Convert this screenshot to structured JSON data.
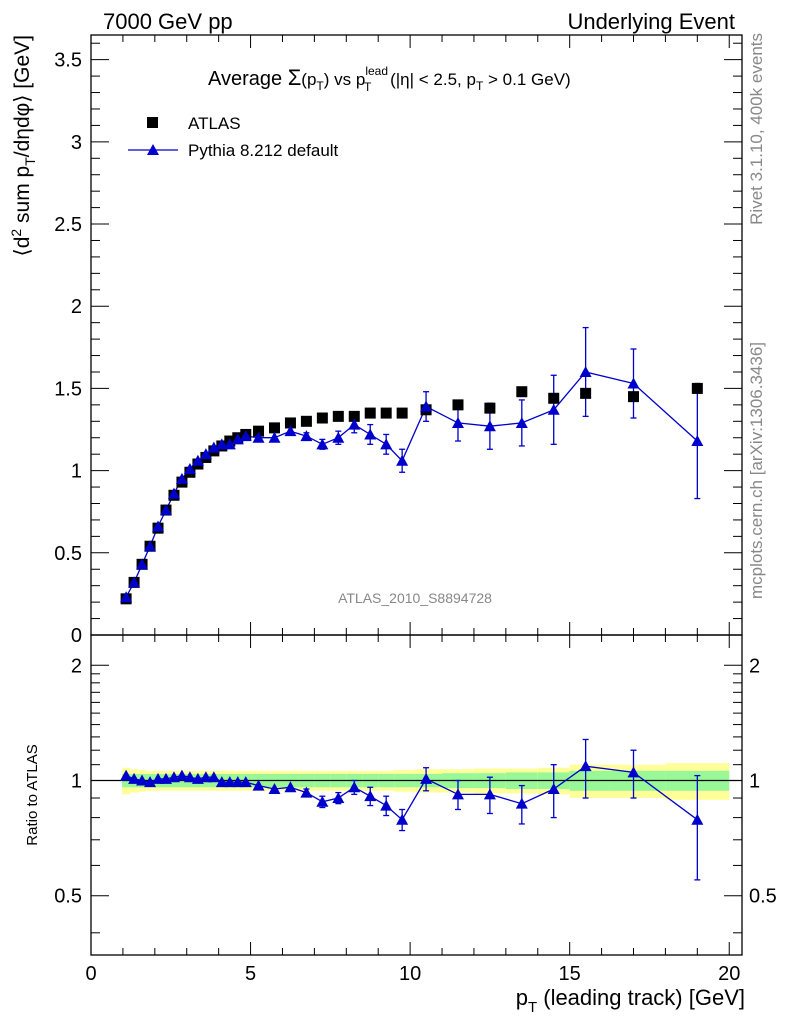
{
  "header": {
    "left": "7000 GeV pp",
    "right": "Underlying Event"
  },
  "side_text": {
    "rivet": "Rivet 3.1.10,  400k events",
    "mcplots": "mcplots.cern.ch [arXiv:1306.3436]"
  },
  "watermark": "ATLAS_2010_S8894728",
  "main_panel": {
    "title": {
      "prefix": "Average ",
      "sigma": "Σ",
      "sigma_arg_open": "(p",
      "sigma_arg_sub": "T",
      "sigma_arg_close": ")",
      "vs": " vs p",
      "lead_sup": "lead",
      "lead_sub": "T",
      "cuts_1": " (|η| < 2.5, p",
      "cuts_sub": "T",
      "cuts_2": " > 0.1 GeV)"
    },
    "ylabel": {
      "open": "⟨d",
      "sup": "2",
      "mid": " sum p",
      "sub": "T",
      "close": "/dηdφ⟩ [GeV]"
    },
    "yticks": [
      "0",
      "0.5",
      "1",
      "1.5",
      "2",
      "2.5",
      "3",
      "3.5"
    ],
    "legend": {
      "atlas": "ATLAS",
      "pythia": "Pythia 8.212 default"
    }
  },
  "ratio_panel": {
    "ylabel": "Ratio to ATLAS",
    "yticks": [
      "0.5",
      "1",
      "2"
    ]
  },
  "xaxis": {
    "label_pre": "p",
    "label_sub": "T",
    "label_post": " (leading track) [GeV]",
    "ticks": [
      "0",
      "5",
      "10",
      "15",
      "20"
    ]
  },
  "colors": {
    "mc": "#0000cc",
    "data": "#000000",
    "band_inner": "#98f898",
    "band_outer": "#ffff99"
  },
  "chart_data": [
    {
      "type": "scatter",
      "title": "Average Σ(pT) vs pT lead (|η| < 2.5, pT > 0.1 GeV)",
      "ylabel": "⟨d2 sum pT/dηdφ⟩ [GeV]",
      "xlabel": "pT (leading track) [GeV]",
      "xlim": [
        0,
        20.4
      ],
      "ylim": [
        0,
        3.65
      ],
      "grid": false,
      "legend_position": "top-left",
      "x": [
        1.1,
        1.35,
        1.6,
        1.85,
        2.1,
        2.35,
        2.6,
        2.85,
        3.1,
        3.35,
        3.6,
        3.85,
        4.1,
        4.35,
        4.6,
        4.85,
        5.25,
        5.75,
        6.25,
        6.75,
        7.25,
        7.75,
        8.25,
        8.75,
        9.25,
        9.75,
        10.5,
        11.5,
        12.5,
        13.5,
        14.5,
        15.5,
        17.0,
        19.0
      ],
      "series": [
        {
          "name": "ATLAS",
          "marker": "square",
          "values": [
            0.22,
            0.32,
            0.43,
            0.54,
            0.65,
            0.76,
            0.85,
            0.93,
            0.99,
            1.04,
            1.08,
            1.12,
            1.15,
            1.18,
            1.2,
            1.22,
            1.24,
            1.26,
            1.29,
            1.3,
            1.32,
            1.33,
            1.33,
            1.35,
            1.35,
            1.35,
            1.37,
            1.4,
            1.38,
            1.48,
            1.44,
            1.47,
            1.45,
            1.5
          ]
        },
        {
          "name": "Pythia 8.212 default",
          "marker": "triangle",
          "values": [
            0.23,
            0.32,
            0.43,
            0.54,
            0.66,
            0.76,
            0.86,
            0.95,
            1.01,
            1.06,
            1.1,
            1.14,
            1.16,
            1.16,
            1.19,
            1.21,
            1.2,
            1.2,
            1.24,
            1.21,
            1.16,
            1.2,
            1.28,
            1.22,
            1.16,
            1.06,
            1.39,
            1.29,
            1.27,
            1.29,
            1.37,
            1.6,
            1.53,
            1.18
          ],
          "errors": [
            0.0,
            0.0,
            0.0,
            0.0,
            0.0,
            0.0,
            0.0,
            0.0,
            0.0,
            0.0,
            0.0,
            0.0,
            0.0,
            0.0,
            0.0,
            0.0,
            0.0,
            0.0,
            0.0,
            0.02,
            0.03,
            0.04,
            0.05,
            0.06,
            0.06,
            0.07,
            0.09,
            0.11,
            0.14,
            0.14,
            0.21,
            0.27,
            0.21,
            0.35
          ]
        }
      ]
    },
    {
      "type": "line",
      "ylabel": "Ratio to ATLAS",
      "xlim": [
        0,
        20.4
      ],
      "ylim": [
        0.35,
        2.4
      ],
      "log_y": true,
      "reference_line": 1,
      "x": [
        1.1,
        1.35,
        1.6,
        1.85,
        2.1,
        2.35,
        2.6,
        2.85,
        3.1,
        3.35,
        3.6,
        3.85,
        4.1,
        4.35,
        4.6,
        4.85,
        5.25,
        5.75,
        6.25,
        6.75,
        7.25,
        7.75,
        8.25,
        8.75,
        9.25,
        9.75,
        10.5,
        11.5,
        12.5,
        13.5,
        14.5,
        15.5,
        17.0,
        19.0
      ],
      "series": [
        {
          "name": "Pythia 8.212 default",
          "values": [
            1.03,
            1.01,
            1.0,
            0.99,
            1.01,
            1.01,
            1.02,
            1.03,
            1.02,
            1.01,
            1.02,
            1.02,
            0.99,
            0.99,
            0.99,
            0.99,
            0.97,
            0.95,
            0.96,
            0.93,
            0.88,
            0.9,
            0.96,
            0.91,
            0.86,
            0.79,
            1.01,
            0.92,
            0.92,
            0.87,
            0.95,
            1.09,
            1.05,
            0.79
          ],
          "errors": [
            0.0,
            0.0,
            0.0,
            0.0,
            0.0,
            0.0,
            0.0,
            0.0,
            0.0,
            0.0,
            0.0,
            0.0,
            0.0,
            0.0,
            0.0,
            0.0,
            0.0,
            0.0,
            0.0,
            0.02,
            0.03,
            0.03,
            0.04,
            0.05,
            0.05,
            0.05,
            0.07,
            0.08,
            0.1,
            0.1,
            0.15,
            0.19,
            0.15,
            0.24
          ]
        }
      ],
      "band_inner_halfwidth": [
        0.04,
        0.04,
        0.04,
        0.04,
        0.04,
        0.04,
        0.04,
        0.04,
        0.04,
        0.04,
        0.04,
        0.04,
        0.04,
        0.04,
        0.04,
        0.04,
        0.04,
        0.04,
        0.04,
        0.04,
        0.04,
        0.04,
        0.04,
        0.04,
        0.04,
        0.04,
        0.04,
        0.045,
        0.045,
        0.05,
        0.05,
        0.06,
        0.06,
        0.06
      ],
      "band_outer_halfwidth": [
        0.08,
        0.07,
        0.065,
        0.06,
        0.06,
        0.06,
        0.06,
        0.06,
        0.06,
        0.06,
        0.06,
        0.06,
        0.06,
        0.06,
        0.06,
        0.06,
        0.06,
        0.06,
        0.06,
        0.06,
        0.06,
        0.06,
        0.06,
        0.06,
        0.06,
        0.065,
        0.07,
        0.07,
        0.075,
        0.075,
        0.08,
        0.1,
        0.1,
        0.11
      ]
    }
  ]
}
